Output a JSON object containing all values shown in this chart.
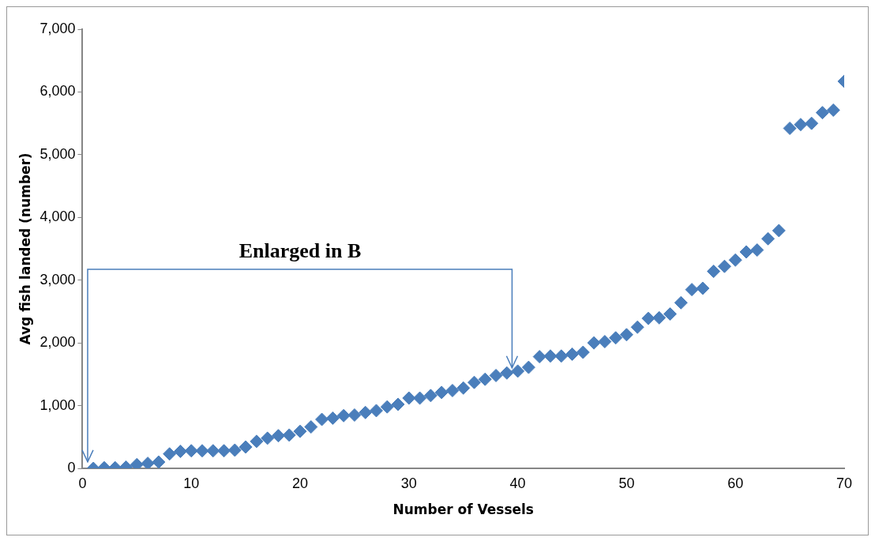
{
  "chart_data": {
    "type": "scatter",
    "xlabel": "Number of Vessels",
    "ylabel": "Avg fish landed (number)",
    "annotations": [
      "Enlarged in B"
    ],
    "x": [
      1,
      2,
      3,
      4,
      5,
      6,
      7,
      8,
      9,
      10,
      11,
      12,
      13,
      14,
      15,
      16,
      17,
      18,
      19,
      20,
      21,
      22,
      23,
      24,
      25,
      26,
      27,
      28,
      29,
      30,
      31,
      32,
      33,
      34,
      35,
      36,
      37,
      38,
      39,
      40,
      41,
      42,
      43,
      44,
      45,
      46,
      47,
      48,
      49,
      50,
      51,
      52,
      53,
      54,
      55,
      56,
      57,
      58,
      59,
      60,
      61,
      62,
      63,
      64,
      65,
      66,
      67,
      68,
      69,
      70
    ],
    "series": [
      {
        "color": "#4a7ebb",
        "values": [
          0,
          10,
          10,
          20,
          60,
          80,
          100,
          230,
          270,
          280,
          280,
          280,
          280,
          290,
          340,
          430,
          480,
          520,
          530,
          590,
          660,
          780,
          800,
          840,
          850,
          890,
          920,
          980,
          1020,
          1120,
          1120,
          1160,
          1210,
          1240,
          1280,
          1370,
          1420,
          1480,
          1520,
          1550,
          1610,
          1780,
          1790,
          1790,
          1820,
          1850,
          2000,
          2020,
          2080,
          2130,
          2250,
          2390,
          2400,
          2460,
          2640,
          2850,
          2870,
          3140,
          3220,
          3320,
          3450,
          3480,
          3660,
          3790,
          5420,
          5480,
          5500,
          5670,
          5710,
          6170
        ]
      }
    ],
    "xlim": [
      0,
      70
    ],
    "xticks": [
      0,
      10,
      20,
      30,
      40,
      50,
      60,
      70
    ],
    "ylim": [
      0,
      7000
    ],
    "yticks": [
      {
        "value": 0,
        "label": "0"
      },
      {
        "value": 1000,
        "label": "1,000"
      },
      {
        "value": 2000,
        "label": "2,000"
      },
      {
        "value": 3000,
        "label": "3,000"
      },
      {
        "value": 4000,
        "label": "4,000"
      },
      {
        "value": 5000,
        "label": "5,000"
      },
      {
        "value": 6000,
        "label": "6,000"
      },
      {
        "value": 7000,
        "label": "7,000"
      }
    ],
    "grid": false,
    "legend": false,
    "marker": "diamond"
  }
}
